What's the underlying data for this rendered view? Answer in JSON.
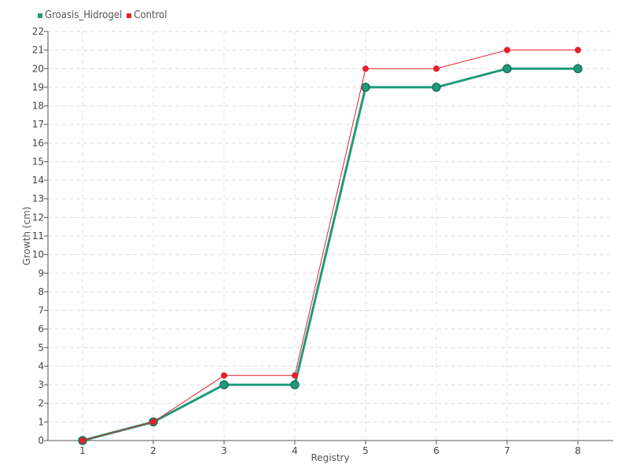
{
  "chart_data": {
    "type": "line",
    "title": "",
    "xlabel": "Registry",
    "ylabel": "Growth (cm)",
    "categories": [
      "1",
      "2",
      "3",
      "4",
      "5",
      "6",
      "7",
      "8"
    ],
    "ylim": [
      0,
      22
    ],
    "yticks": [
      "0",
      "1",
      "2",
      "3",
      "4",
      "5",
      "6",
      "7",
      "8",
      "9",
      "10",
      "11",
      "12",
      "13",
      "14",
      "15",
      "16",
      "17",
      "18",
      "19",
      "20",
      "21",
      "22"
    ],
    "grid": true,
    "legend": "top-left",
    "series": [
      {
        "name": "Groasis_Hidrogel",
        "color": "#1f9a7a",
        "values": [
          0,
          1,
          3,
          3,
          19,
          19,
          20,
          20
        ]
      },
      {
        "name": "Control",
        "color": "#e8202a",
        "values": [
          0,
          1,
          3.5,
          3.5,
          20,
          20,
          21,
          21
        ]
      }
    ]
  }
}
